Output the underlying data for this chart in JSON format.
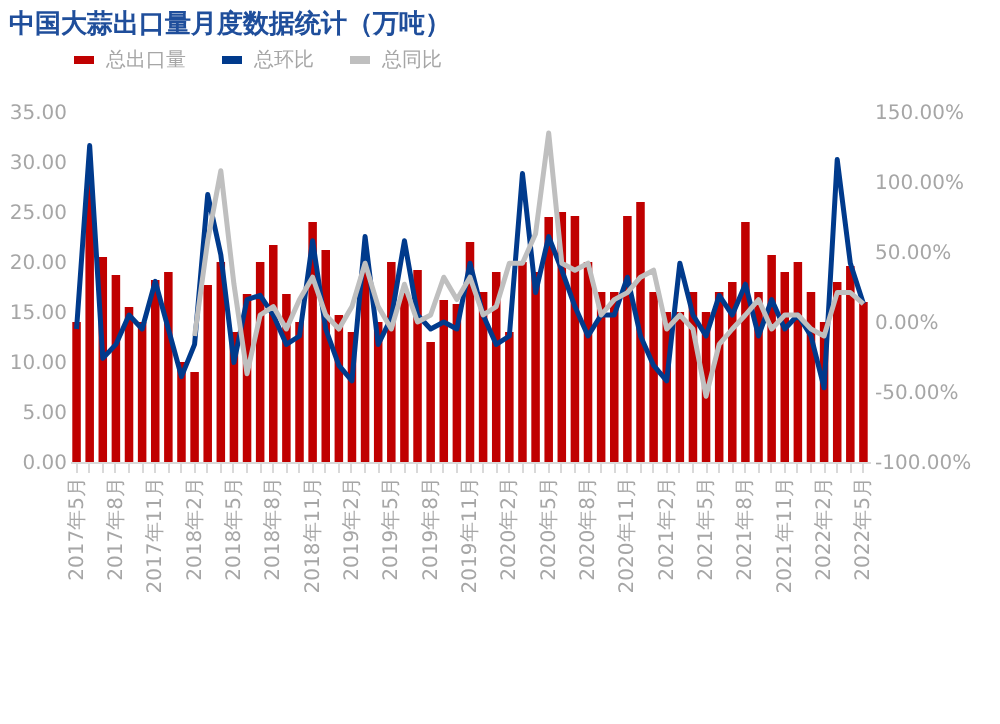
{
  "chart_data": {
    "type": "bar",
    "title": "中国大蒜出口量月度数据统计（万吨）",
    "categories": [
      "2017年5月",
      null,
      null,
      "2017年8月",
      null,
      null,
      "2017年11月",
      null,
      null,
      "2018年2月",
      null,
      null,
      "2018年5月",
      null,
      null,
      "2018年8月",
      null,
      null,
      "2018年11月",
      null,
      null,
      "2019年2月",
      null,
      null,
      "2019年5月",
      null,
      null,
      "2019年8月",
      null,
      null,
      "2019年11月",
      null,
      null,
      "2020年2月",
      null,
      null,
      "2020年5月",
      null,
      null,
      "2020年8月",
      null,
      null,
      "2020年11月",
      null,
      null,
      "2021年2月",
      null,
      null,
      "2021年5月",
      null,
      null,
      "2021年8月",
      null,
      null,
      "2021年11月",
      null,
      null,
      "2022年2月",
      null,
      null,
      "2022年5月"
    ],
    "series": [
      {
        "name": "总出口量",
        "color": "#c00000",
        "values": [
          14,
          28,
          20.5,
          18.7,
          15.5,
          14,
          18.2,
          19,
          10,
          9,
          17.7,
          20,
          13,
          16.8,
          20,
          21.7,
          16.8,
          14,
          24,
          21.2,
          14.7,
          13,
          19,
          14,
          20,
          17.2,
          19.2,
          12,
          16.2,
          15.8,
          22,
          17,
          19,
          13,
          20,
          19,
          24.5,
          25,
          24.6,
          20,
          17,
          17,
          24.6,
          26,
          17,
          15,
          15,
          17,
          15,
          17,
          18,
          24,
          17,
          20.7,
          19,
          20,
          17,
          14,
          18,
          19.6,
          16
        ]
      },
      {
        "name": "总环比",
        "type": "line",
        "axis": "y2",
        "color": "#003a8c",
        "values": [
          -5,
          126,
          -26,
          -16,
          5,
          -5,
          29,
          -5,
          -39,
          -16,
          91,
          48,
          -29,
          16,
          19,
          5,
          -16,
          -10,
          58,
          -5,
          -31,
          -42,
          61,
          -16,
          3,
          58,
          5,
          -5,
          0,
          -5,
          42,
          5,
          -16,
          -10,
          106,
          21,
          61,
          37,
          11,
          -10,
          5,
          5,
          32,
          -10,
          -31,
          -42,
          42,
          5,
          -10,
          19,
          5,
          27,
          -10,
          16,
          -5,
          5,
          -10,
          -47,
          116,
          42,
          13
        ]
      },
      {
        "name": "总同比",
        "type": "line",
        "axis": "y2",
        "color": "#bfbfbf",
        "values": [
          null,
          null,
          null,
          null,
          null,
          null,
          null,
          null,
          null,
          -10,
          58,
          108,
          27,
          -37,
          5,
          11,
          -5,
          16,
          32,
          5,
          -5,
          11,
          42,
          11,
          -5,
          27,
          0,
          5,
          32,
          16,
          32,
          5,
          11,
          42,
          42,
          63,
          135,
          42,
          37,
          42,
          5,
          16,
          21,
          32,
          37,
          -5,
          5,
          -5,
          -53,
          -16,
          -5,
          5,
          16,
          -5,
          5,
          5,
          -5,
          -10,
          21,
          21,
          13
        ]
      }
    ],
    "ylim": [
      0,
      35
    ],
    "yticks": [
      {
        "value": 0,
        "label": "0.00"
      },
      {
        "value": 5,
        "label": "5.00"
      },
      {
        "value": 10,
        "label": "10.00"
      },
      {
        "value": 15,
        "label": "15.00"
      },
      {
        "value": 20,
        "label": "20.00"
      },
      {
        "value": 25,
        "label": "25.00"
      },
      {
        "value": 30,
        "label": "30.00"
      },
      {
        "value": 35,
        "label": "35.00"
      }
    ],
    "y2lim": [
      -100,
      150
    ],
    "y2ticks": [
      {
        "value": -100,
        "label": "-100.00%"
      },
      {
        "value": -50,
        "label": "-50.00%"
      },
      {
        "value": 0,
        "label": "0.00%"
      },
      {
        "value": 50,
        "label": "50.00%"
      },
      {
        "value": 100,
        "label": "100.00%"
      },
      {
        "value": 150,
        "label": "150.00%"
      }
    ],
    "grid": false,
    "legend": "top",
    "marker": "none",
    "line_style": "solid"
  }
}
